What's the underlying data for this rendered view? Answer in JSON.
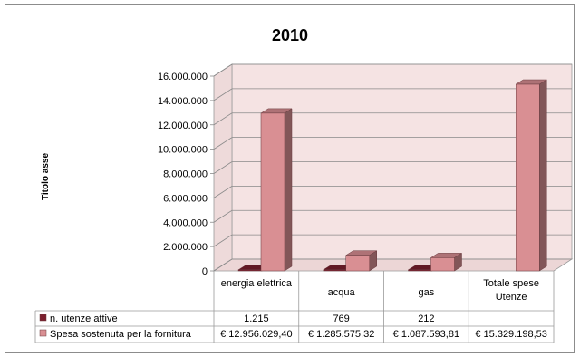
{
  "chart_data": {
    "type": "bar",
    "title": "2010",
    "ylabel": "Titolo asse",
    "ylim": [
      0,
      16000000
    ],
    "y_ticks": [
      "0",
      "2.000.000",
      "4.000.000",
      "6.000.000",
      "8.000.000",
      "10.000.000",
      "12.000.000",
      "14.000.000",
      "16.000.000"
    ],
    "categories": [
      "energia elettrica",
      "acqua",
      "gas",
      "Totale spese Utenze"
    ],
    "series": [
      {
        "name": "n. utenze attive",
        "color": "#7b1f2e",
        "values": [
          1215,
          769,
          212,
          null
        ],
        "labels": [
          "1.215",
          "769",
          "212",
          ""
        ]
      },
      {
        "name": "Spesa sostenuta per la fornitura",
        "color": "#d98f93",
        "values": [
          12956029.4,
          1285575.32,
          1087593.81,
          15329198.53
        ],
        "labels": [
          "€ 12.956.029,40",
          "€ 1.285.575,32",
          "€ 1.087.593,81",
          "€ 15.329.198,53"
        ]
      }
    ],
    "grid": true,
    "legend": "data-table"
  }
}
